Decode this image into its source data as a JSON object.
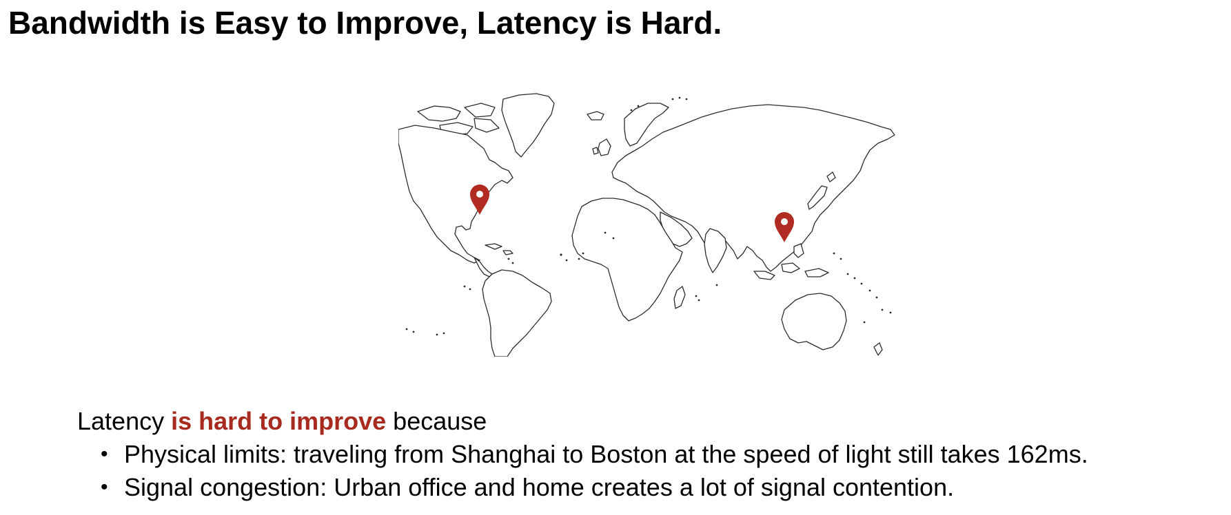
{
  "slide": {
    "title": "Bandwidth is Easy to Improve, Latency is Hard."
  },
  "map": {
    "pin_color": "#b02c22",
    "pins": [
      "location-pin-boston",
      "location-pin-shanghai"
    ]
  },
  "body": {
    "lead_start": "Latency ",
    "lead_emphasis": "is hard to improve",
    "lead_end": " because",
    "accent_color": "#a82a1e",
    "bullet_glyph": "•",
    "bullets": [
      "Physical limits: traveling from Shanghai to Boston at the speed of light still takes 162ms.",
      "Signal congestion: Urban office and home creates a lot of signal contention."
    ]
  }
}
